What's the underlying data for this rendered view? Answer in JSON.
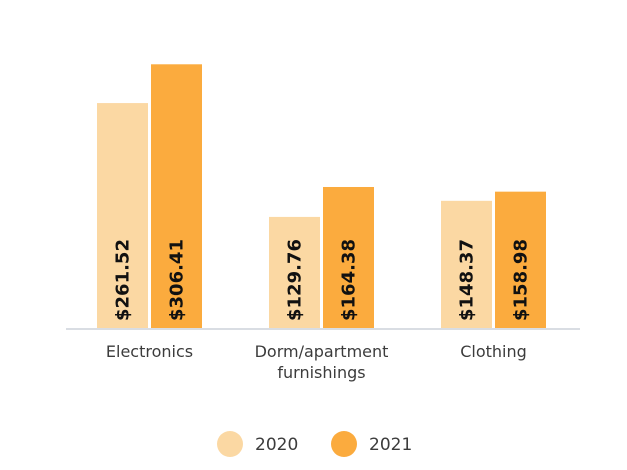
{
  "chart_data": {
    "type": "bar",
    "categories": [
      [
        "Electronics"
      ],
      [
        "Dorm/apartment",
        "furnishings"
      ],
      [
        "Clothing"
      ]
    ],
    "series": [
      {
        "name": "2020",
        "color": "#fbd8a3",
        "values": [
          261.52,
          129.76,
          148.37
        ],
        "labels": [
          "$261.52",
          "$129.76",
          "$148.37"
        ]
      },
      {
        "name": "2021",
        "color": "#fbab3e",
        "values": [
          306.41,
          164.38,
          158.98
        ],
        "labels": [
          "$306.41",
          "$164.38",
          "$158.98"
        ]
      }
    ],
    "ylim": [
      0,
      360
    ],
    "grid": false,
    "legend_position": "bottom-center",
    "baseline_color": "#d9dde3"
  }
}
